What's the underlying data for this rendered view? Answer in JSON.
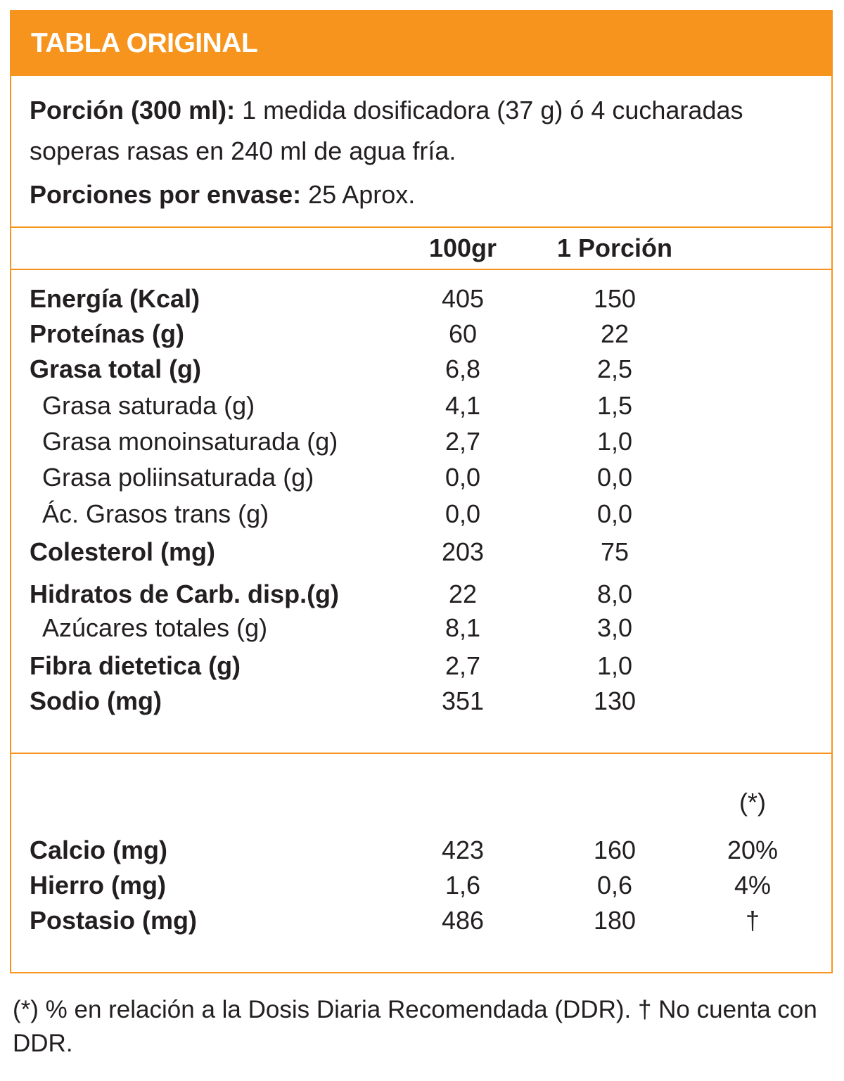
{
  "header": {
    "title": "TABLA ORIGINAL"
  },
  "serving": {
    "portion_label": "Porción (300 ml):",
    "portion_text": " 1 medida dosificadora (37 g) ó 4 cucharadas soperas rasas en 240 ml de agua fría.",
    "servings_label": "Porciones por envase:",
    "servings_value": " 25 Aprox."
  },
  "columns": {
    "per100": "100gr",
    "per_portion": "1 Porción",
    "ddr_mark": "(*)"
  },
  "nutrients": [
    {
      "label": "Energía (Kcal)",
      "per100": "405",
      "per_portion": "150"
    },
    {
      "label": "Proteínas (g)",
      "per100": "60",
      "per_portion": "22"
    },
    {
      "label": "Grasa total (g)",
      "per100": "6,8",
      "per_portion": "2,5"
    },
    {
      "label": "Grasa saturada (g)",
      "per100": "4,1",
      "per_portion": "1,5"
    },
    {
      "label": "Grasa monoinsaturada (g)",
      "per100": "2,7",
      "per_portion": "1,0"
    },
    {
      "label": "Grasa poliinsaturada (g)",
      "per100": "0,0",
      "per_portion": "0,0"
    },
    {
      "label": "Ác. Grasos trans (g)",
      "per100": "0,0",
      "per_portion": "0,0"
    },
    {
      "label": "Colesterol (mg)",
      "per100": "203",
      "per_portion": "75"
    },
    {
      "label": "Hidratos de Carb. disp.(g)",
      "per100": "22",
      "per_portion": "8,0"
    },
    {
      "label": "Azúcares totales (g)",
      "per100": "8,1",
      "per_portion": "3,0"
    },
    {
      "label": "Fibra dietetica (g)",
      "per100": "2,7",
      "per_portion": "1,0"
    },
    {
      "label": "Sodio (mg)",
      "per100": "351",
      "per_portion": "130"
    }
  ],
  "minerals": [
    {
      "label": "Calcio (mg)",
      "per100": "423",
      "per_portion": "160",
      "ddr": "20%"
    },
    {
      "label": "Hierro (mg)",
      "per100": "1,6",
      "per_portion": "0,6",
      "ddr": "4%"
    },
    {
      "label": "Postasio (mg)",
      "per100": "486",
      "per_portion": "180",
      "ddr": "†"
    }
  ],
  "footnote": "(*) % en relación a la Dosis Diaria Recomendada (DDR). † No cuenta con DDR.",
  "colors": {
    "accent": "#f7941d",
    "text": "#231f20"
  }
}
